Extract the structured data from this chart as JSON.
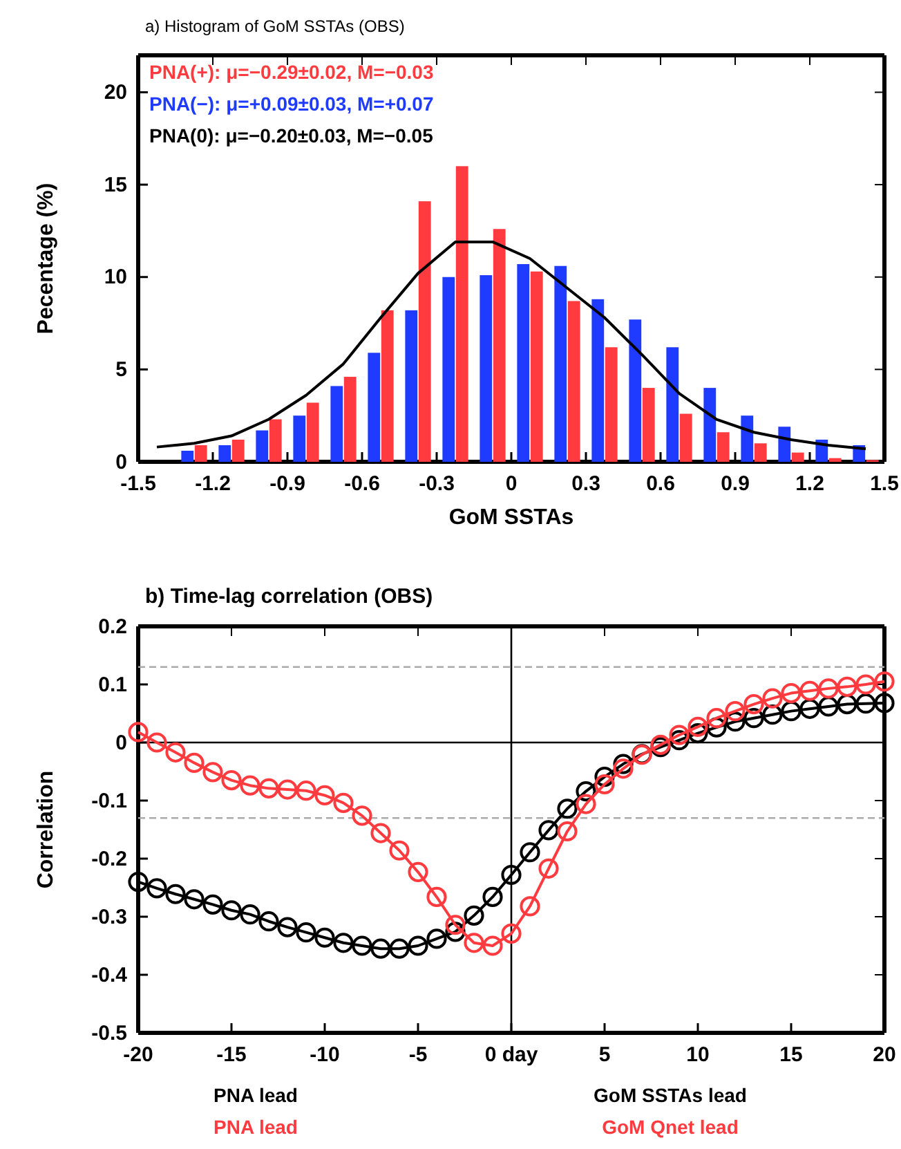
{
  "chart_data": [
    {
      "type": "bar",
      "title": "a) Histogram of GoM SSTAs (OBS)",
      "xlabel": "GoM SSTAs",
      "ylabel": "Pecentage (%)",
      "x": [
        -1.275,
        -1.125,
        -0.975,
        -0.825,
        -0.675,
        -0.525,
        -0.375,
        -0.225,
        -0.075,
        0.075,
        0.225,
        0.375,
        0.525,
        0.675,
        0.825,
        0.975,
        1.125,
        1.275,
        1.425
      ],
      "series": [
        {
          "color": "#ff3b3f",
          "values": [
            0.9,
            1.2,
            2.3,
            3.2,
            4.6,
            8.2,
            14.1,
            16.0,
            12.6,
            10.3,
            8.7,
            6.2,
            4.0,
            2.6,
            1.6,
            1.0,
            0.5,
            0.2,
            0.1
          ]
        },
        {
          "color": "#1f3bff",
          "values": [
            0.6,
            0.9,
            1.7,
            2.5,
            4.1,
            5.9,
            8.2,
            10.0,
            10.1,
            10.7,
            10.6,
            8.8,
            7.7,
            6.2,
            4.0,
            2.5,
            1.9,
            1.2,
            0.9
          ]
        },
        {
          "type": "line",
          "color": "#000000",
          "x": [
            -1.425,
            -1.275,
            -1.125,
            -0.975,
            -0.825,
            -0.675,
            -0.525,
            -0.375,
            -0.225,
            -0.075,
            0.075,
            0.225,
            0.375,
            0.525,
            0.675,
            0.825,
            0.975,
            1.125,
            1.275,
            1.425
          ],
          "values": [
            0.8,
            1.0,
            1.4,
            2.3,
            3.6,
            5.3,
            7.8,
            10.2,
            11.9,
            11.9,
            11.0,
            9.4,
            7.8,
            5.8,
            3.7,
            2.3,
            1.6,
            1.2,
            0.9,
            0.7
          ]
        }
      ],
      "xlim": [
        -1.5,
        1.5
      ],
      "xticks": [
        -1.5,
        -1.2,
        -0.9,
        -0.6,
        -0.3,
        0,
        0.3,
        0.6,
        0.9,
        1.2,
        1.5
      ],
      "ylim": [
        0,
        22
      ],
      "yticks": [
        0,
        5,
        10,
        15,
        20
      ],
      "annotations": [
        "PNA(+): μ=−0.29±0.02, M=−0.03",
        "PNA(−): μ=+0.09±0.03, M=+0.07",
        "PNA(0): μ=−0.20±0.03, M=−0.05"
      ]
    },
    {
      "type": "line",
      "title": "b) Time-lag correlation (OBS)",
      "ylabel": "Correlation",
      "marker": "circle",
      "line_style": "solid",
      "x": [
        -20,
        -19,
        -18,
        -17,
        -16,
        -15,
        -14,
        -13,
        -12,
        -11,
        -10,
        -9,
        -8,
        -7,
        -6,
        -5,
        -4,
        -3,
        -2,
        -1,
        0,
        1,
        2,
        3,
        4,
        5,
        6,
        7,
        8,
        9,
        10,
        11,
        12,
        13,
        14,
        15,
        16,
        17,
        18,
        19,
        20
      ],
      "series": [
        {
          "color": "#000000",
          "values": [
            -0.24,
            -0.251,
            -0.261,
            -0.27,
            -0.279,
            -0.289,
            -0.296,
            -0.308,
            -0.318,
            -0.327,
            -0.336,
            -0.345,
            -0.35,
            -0.355,
            -0.355,
            -0.35,
            -0.338,
            -0.326,
            -0.298,
            -0.266,
            -0.228,
            -0.189,
            -0.151,
            -0.114,
            -0.084,
            -0.059,
            -0.037,
            -0.02,
            -0.008,
            0.004,
            0.016,
            0.026,
            0.036,
            0.042,
            0.048,
            0.054,
            0.058,
            0.062,
            0.066,
            0.067,
            0.068
          ]
        },
        {
          "color": "#ff3b3f",
          "values": [
            0.018,
            0,
            -0.017,
            -0.035,
            -0.051,
            -0.065,
            -0.074,
            -0.079,
            -0.081,
            -0.083,
            -0.091,
            -0.104,
            -0.126,
            -0.156,
            -0.186,
            -0.223,
            -0.266,
            -0.314,
            -0.345,
            -0.35,
            -0.329,
            -0.282,
            -0.217,
            -0.153,
            -0.106,
            -0.072,
            -0.045,
            -0.021,
            -0.004,
            0.013,
            0.027,
            0.042,
            0.054,
            0.066,
            0.076,
            0.085,
            0.089,
            0.093,
            0.096,
            0.1,
            0.105
          ]
        }
      ],
      "xlim": [
        -20,
        20
      ],
      "xticks": [
        -20,
        -15,
        -10,
        -5,
        {
          "value": 0,
          "label": "0 day"
        },
        5,
        10,
        15,
        20
      ],
      "ylim": [
        -0.5,
        0.2
      ],
      "yticks": [
        -0.5,
        -0.4,
        -0.3,
        -0.2,
        -0.1,
        0,
        0.1,
        0.2
      ],
      "ref_lines": [
        {
          "axis": "y",
          "value": 0,
          "color": "#000000",
          "line_style": "solid"
        },
        {
          "axis": "y",
          "value": 0.13,
          "color": "#aaaaaa",
          "line_style": "dashed"
        },
        {
          "axis": "y",
          "value": -0.13,
          "color": "#aaaaaa",
          "line_style": "dashed"
        },
        {
          "axis": "x",
          "value": 0,
          "color": "#000000",
          "line_style": "solid"
        }
      ],
      "annotations": [
        "PNA lead",
        "GoM SSTAs lead",
        "PNA lead",
        "GoM Qnet lead"
      ]
    }
  ]
}
